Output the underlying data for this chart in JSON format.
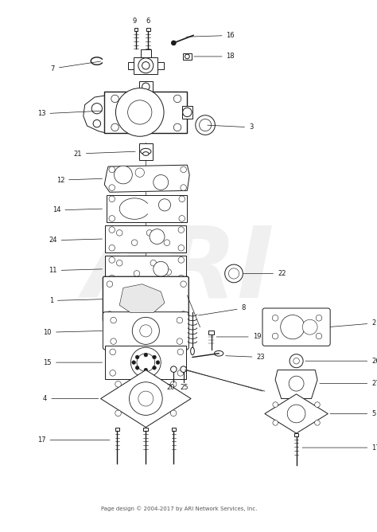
{
  "footer": "Page design © 2004-2017 by ARI Network Services, Inc.",
  "background_color": "#ffffff",
  "watermark": "ARI",
  "watermark_color": "#cccccc",
  "fig_width": 4.74,
  "fig_height": 6.68,
  "dpi": 100,
  "line_color": "#1a1a1a",
  "label_fontsize": 6.0,
  "lw": 0.7
}
